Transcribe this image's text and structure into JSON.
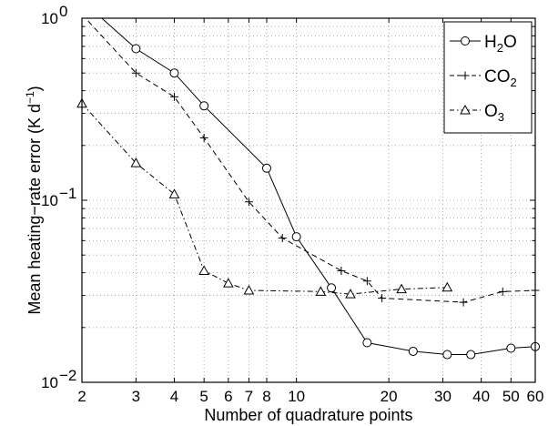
{
  "chart_data": {
    "type": "line",
    "xlabel": "Number of quadrature points",
    "ylabel": "Mean heating−rate error (K d",
    "ylabel_sup": "−1",
    "ylabel_close": ")",
    "x_scale": "log",
    "y_scale": "log",
    "xlim": [
      2,
      60
    ],
    "ylim": [
      0.01,
      1
    ],
    "x_ticks": [
      2,
      3,
      4,
      5,
      6,
      7,
      8,
      10,
      20,
      30,
      40,
      50,
      60
    ],
    "x_tick_labels": [
      "2",
      "3",
      "4",
      "5",
      "6",
      "7",
      "8",
      "10",
      "20",
      "30",
      "40",
      "50",
      "60"
    ],
    "y_ticks": [
      {
        "value": 1,
        "base": "10",
        "exp": "0"
      },
      {
        "value": 0.1,
        "base": "10",
        "exp": "−1"
      },
      {
        "value": 0.01,
        "base": "10",
        "exp": "−2"
      }
    ],
    "grid": true,
    "legend_position": "top-right",
    "series": [
      {
        "name": "H2O",
        "label_base": "H",
        "label_sub": "2",
        "label_rest": "O",
        "marker": "circle",
        "dash": "solid",
        "x": [
          2,
          3,
          4,
          5,
          8,
          10,
          13,
          17,
          24,
          31,
          37,
          50,
          60
        ],
        "y": [
          1.25,
          0.68,
          0.5,
          0.33,
          0.15,
          0.063,
          0.033,
          0.0165,
          0.0148,
          0.0142,
          0.0142,
          0.0154,
          0.0157
        ]
      },
      {
        "name": "CO2",
        "label_base": "CO",
        "label_sub": "2",
        "label_rest": "",
        "marker": "plus",
        "dash": "dashed",
        "x": [
          2,
          3,
          4,
          5,
          7,
          9,
          14,
          17,
          19,
          35,
          47,
          60
        ],
        "y": [
          1.05,
          0.5,
          0.37,
          0.22,
          0.098,
          0.062,
          0.041,
          0.036,
          0.029,
          0.0275,
          0.0315,
          0.032
        ]
      },
      {
        "name": "O3",
        "label_base": "O",
        "label_sub": "3",
        "label_rest": "",
        "marker": "triangle",
        "dash": "dashdot",
        "x": [
          2,
          3,
          4,
          5,
          6,
          7,
          12,
          15,
          22,
          31
        ],
        "y": [
          0.34,
          0.16,
          0.108,
          0.041,
          0.035,
          0.032,
          0.0315,
          0.0305,
          0.0325,
          0.0332
        ]
      }
    ]
  }
}
